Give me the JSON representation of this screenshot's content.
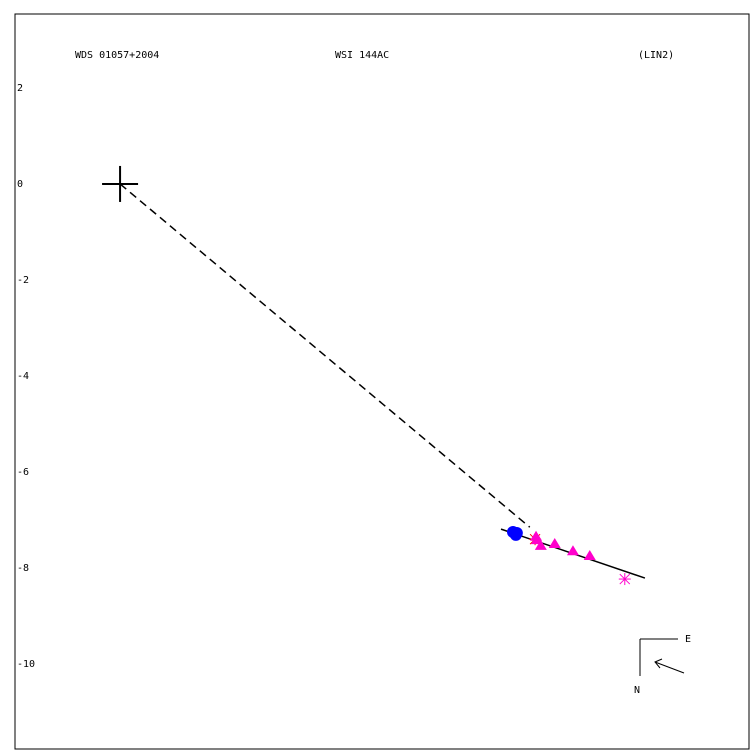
{
  "chart_data": {
    "type": "scatter",
    "title": "WDS 01057+2004",
    "subtitle": "WSI 144AC",
    "annotation": "(LIN2)",
    "xlim": [
      -2.19,
      13.13
    ],
    "ylim": [
      -11.77,
      3.54
    ],
    "yticks": [
      2,
      0,
      -2,
      -4,
      -6,
      -8,
      -10
    ],
    "grid": false,
    "compass": {
      "east": "E",
      "north": "N"
    },
    "series": [
      {
        "marker": "plus",
        "color": "#000000",
        "x": [
          0
        ],
        "values": [
          0
        ]
      },
      {
        "line": "dashed",
        "color": "#000000",
        "x": [
          0,
          8.54
        ],
        "values": [
          0,
          -7.15
        ]
      },
      {
        "line": "solid",
        "color": "#000000",
        "x": [
          7.94,
          10.94
        ],
        "values": [
          -7.19,
          -8.21
        ]
      },
      {
        "marker": "circle",
        "color": "#0000ff",
        "x": [
          8.19,
          8.25,
          8.27
        ],
        "values": [
          -7.25,
          -7.31,
          -7.27
        ]
      },
      {
        "marker": "asterisk",
        "color": "#ff0000",
        "x": [
          8.65
        ],
        "values": [
          -7.4
        ]
      },
      {
        "marker": "triangle",
        "color": "#ff00cc",
        "x": [
          8.67,
          8.69,
          8.77,
          9.06,
          9.44,
          9.79
        ],
        "values": [
          -7.35,
          -7.42,
          -7.54,
          -7.5,
          -7.65,
          -7.75
        ]
      },
      {
        "marker": "asterisk",
        "color": "#ff00cc",
        "x": [
          10.52
        ],
        "values": [
          -8.23
        ]
      }
    ]
  }
}
